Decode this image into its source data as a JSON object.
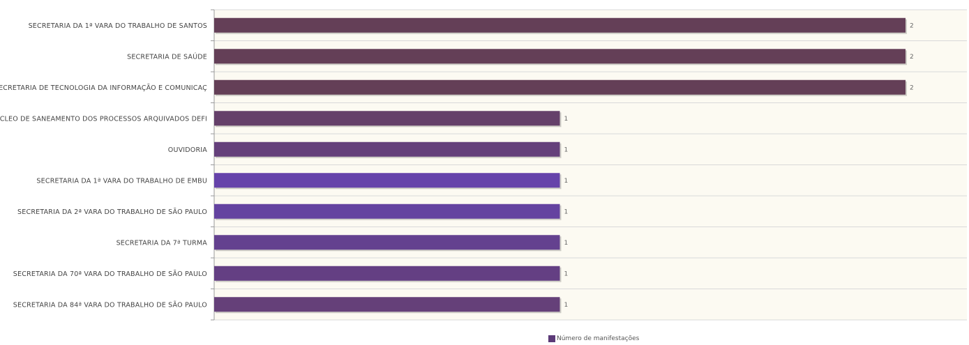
{
  "chart_data": {
    "type": "bar",
    "orientation": "horizontal",
    "categories": [
      "SECRETARIA DA 1ª VARA DO TRABALHO DE SANTOS",
      "SECRETARIA DE SAÚDE",
      "SECRETARIA DE TECNOLOGIA DA INFORMAÇÃO E COMUNICAÇ",
      "NÚCLEO DE SANEAMENTO DOS PROCESSOS ARQUIVADOS DEFI",
      "OUVIDORIA",
      "SECRETARIA DA 1ª VARA DO TRABALHO DE EMBU",
      "SECRETARIA DA 2ª VARA DO TRABALHO DE SÃO PAULO",
      "SECRETARIA DA 7ª TURMA",
      "SECRETARIA DA 70ª VARA DO TRABALHO DE SÃO PAULO",
      "SECRETARIA DA 84ª VARA DO TRABALHO DE SÃO PAULO"
    ],
    "series": [
      {
        "name": "Número de manifestações",
        "values": [
          2,
          2,
          2,
          1,
          1,
          1,
          1,
          1,
          1,
          1
        ]
      }
    ],
    "value_labels": [
      "2",
      "2",
      "2",
      "1",
      "1",
      "1",
      "1",
      "1",
      "1",
      "1"
    ],
    "xlim": [
      0,
      2
    ],
    "grid": true,
    "legend_position": "bottom-center"
  },
  "colors": {
    "bar_colors": [
      "#643f57",
      "#643f57",
      "#643f57",
      "#65406a",
      "#65407b",
      "#6643aa",
      "#6443a0",
      "#64418f",
      "#643f83",
      "#654079"
    ],
    "legend_swatch": "#5c3a78",
    "plot_background": "#fcfaf2",
    "grid_line": "#d9d9d9",
    "axis_line": "#999999"
  }
}
